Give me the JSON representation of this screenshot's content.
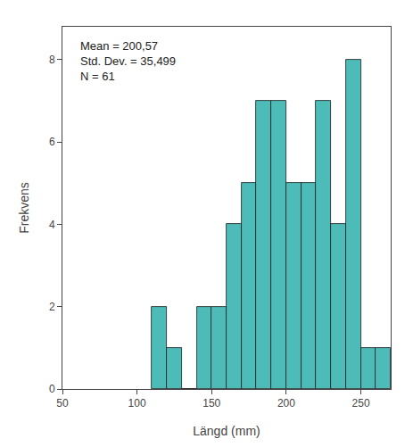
{
  "chart_data": {
    "type": "histogram",
    "xlabel": "Längd (mm)",
    "ylabel": "Frekvens",
    "bins": [
      110,
      120,
      130,
      140,
      150,
      160,
      170,
      180,
      190,
      200,
      210,
      220,
      230,
      240,
      250,
      260,
      270
    ],
    "values": [
      2,
      1,
      0,
      2,
      2,
      4,
      5,
      7,
      7,
      5,
      5,
      7,
      4,
      8,
      1,
      1
    ],
    "color": "#4DBCB8",
    "xlim": [
      50,
      270
    ],
    "ylim": [
      0,
      8.8
    ],
    "xticks": [
      50,
      100,
      150,
      200,
      250
    ],
    "yticks": [
      0,
      2,
      4,
      6,
      8
    ],
    "annotation": "Mean = 200,57\nStd. Dev. = 35,499\nN = 61",
    "grid": false
  }
}
